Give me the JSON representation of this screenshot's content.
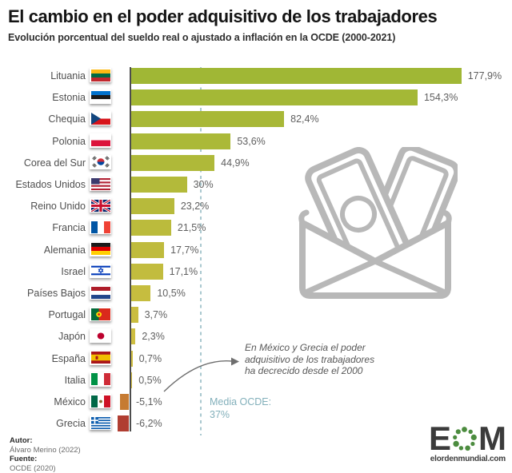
{
  "title": "El cambio en el poder adquisitivo de los trabajadores",
  "subtitle": "Evolución porcentual del sueldo real o ajustado a inflación en la OCDE (2000-2021)",
  "chart_data": {
    "type": "bar",
    "orientation": "horizontal",
    "unit": "%",
    "xlim": [
      -10,
      190
    ],
    "grid": false,
    "categories": [
      "Lituania",
      "Estonia",
      "Chequia",
      "Polonia",
      "Corea del Sur",
      "Estados Unidos",
      "Reino Unido",
      "Francia",
      "Alemania",
      "Israel",
      "Países Bajos",
      "Portugal",
      "Japón",
      "España",
      "Italia",
      "México",
      "Grecia"
    ],
    "values": [
      177.9,
      154.3,
      82.4,
      53.6,
      44.9,
      30,
      23.2,
      21.5,
      17.7,
      17.1,
      10.5,
      3.7,
      2.3,
      0.7,
      0.5,
      -5.1,
      -6.2
    ],
    "value_labels": [
      "177,9%",
      "154,3%",
      "82,4%",
      "53,6%",
      "44,9%",
      "30%",
      "23,2%",
      "21,5%",
      "17,7%",
      "17,1%",
      "10,5%",
      "3,7%",
      "2,3%",
      "0,7%",
      "0,5%",
      "-5,1%",
      "-6,2%"
    ],
    "flags": [
      "lituania",
      "estonia",
      "chequia",
      "polonia",
      "corea-del-sur",
      "estados-unidos",
      "reino-unido",
      "francia",
      "alemania",
      "israel",
      "paises-bajos",
      "portugal",
      "japon",
      "espana",
      "italia",
      "mexico",
      "grecia"
    ],
    "bar_colors": [
      "#a0b735",
      "#a4b836",
      "#a8b837",
      "#abb938",
      "#afb939",
      "#b3ba3a",
      "#b7ba3b",
      "#bbbb3c",
      "#bfbb3d",
      "#c2bc3e",
      "#c6bd3f",
      "#cabd40",
      "#cebe41",
      "#d2bf42",
      "#d5c044",
      "#c67b32",
      "#b03d31"
    ],
    "mean_line": {
      "label": "Media OCDE:",
      "value_label": "37%",
      "value": 37,
      "line_color": "#a9c8cf",
      "text_color": "#83b0bb"
    },
    "annotation": {
      "lines": [
        "En México y Grecia el poder",
        "adquisitivo de los trabajadores",
        "ha decrecido desde el 2000"
      ],
      "color": "#575757"
    }
  },
  "footer": {
    "author_label": "Autor:",
    "author_value": "Álvaro Merino (2022)",
    "source_label": "Fuente:",
    "source_value": "OCDE (2020)"
  },
  "logo": {
    "letter_e": "E",
    "letter_m": "M",
    "website": "elordenmundial.com",
    "dot_color": "#4c8c3f",
    "text_color": "#3b3b3b"
  },
  "colors": {
    "axis": "#4d4d4d",
    "country_label": "#4f4f4f",
    "value_label": "#5f5f5f",
    "icon_gray": "#b8b8b8"
  }
}
